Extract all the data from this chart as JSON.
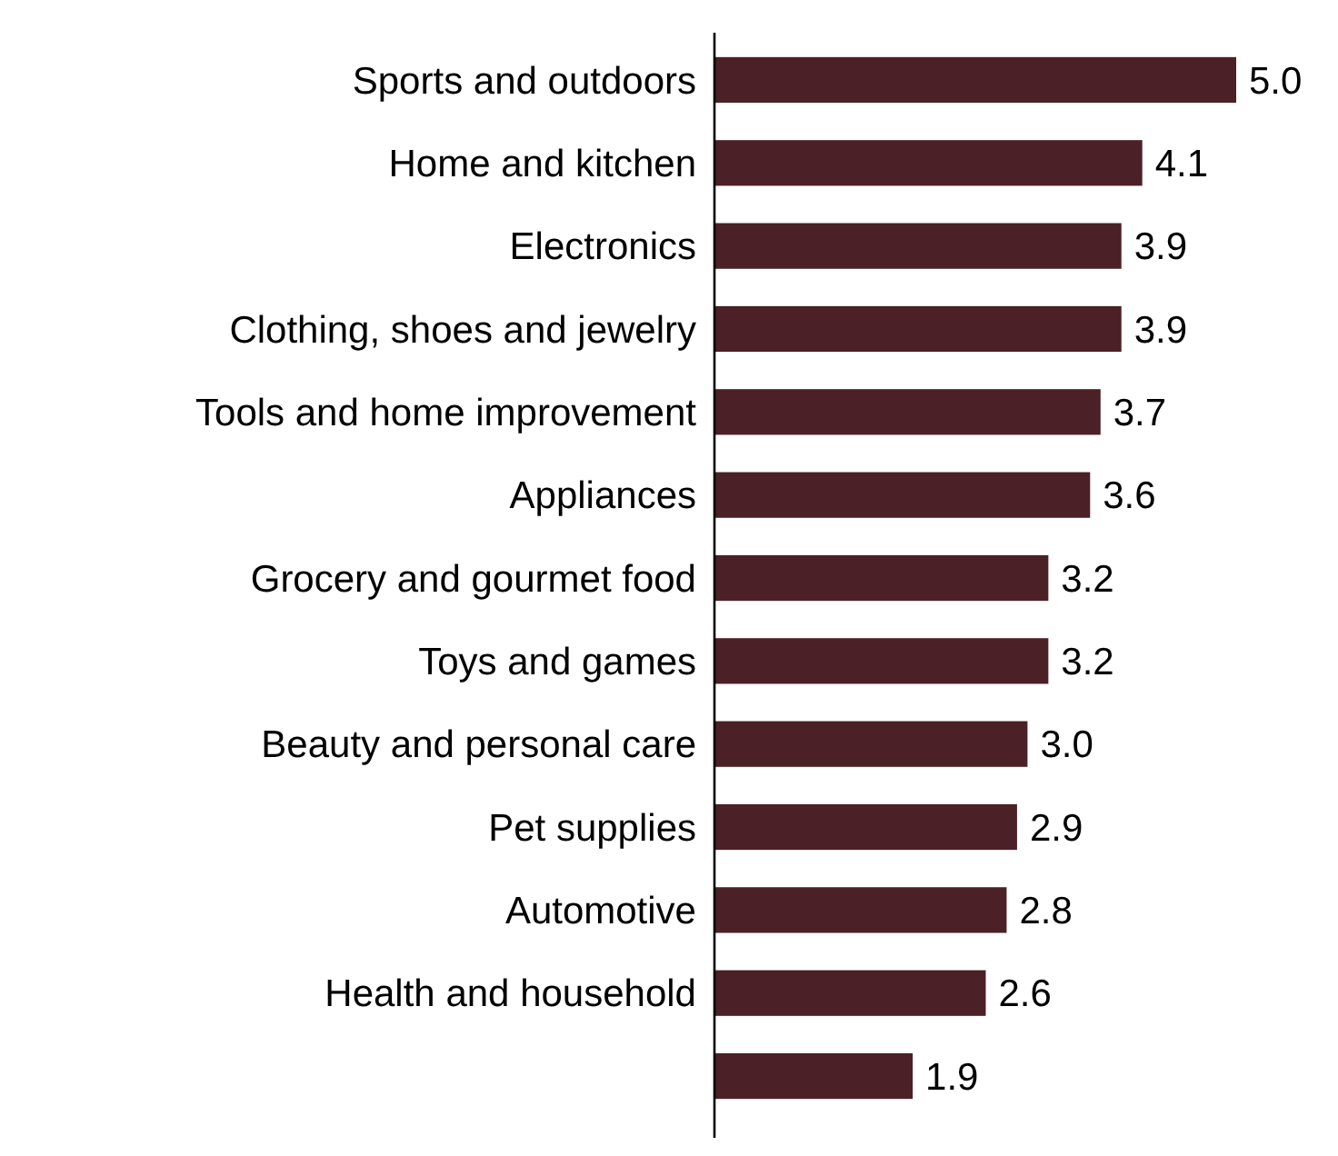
{
  "chart_data": {
    "type": "bar",
    "orientation": "horizontal",
    "categories": [
      "Sports and outdoors",
      "Home and kitchen",
      "Electronics",
      "Clothing, shoes and jewelry",
      "Tools and home improvement",
      "Appliances",
      "Grocery and gourmet food",
      "Toys and games",
      "Beauty and personal care",
      "Pet supplies",
      "Automotive",
      "Health and household",
      null
    ],
    "values": [
      5.0,
      4.1,
      3.9,
      3.9,
      3.7,
      3.6,
      3.2,
      3.2,
      3.0,
      2.9,
      2.8,
      2.6,
      1.9
    ],
    "value_labels": [
      "5.0",
      "4.1",
      "3.9",
      "3.9",
      "3.7",
      "3.6",
      "3.2",
      "3.2",
      "3.0",
      "2.9",
      "2.8",
      "2.6",
      "1.9"
    ],
    "color": "#4b2027"
  }
}
